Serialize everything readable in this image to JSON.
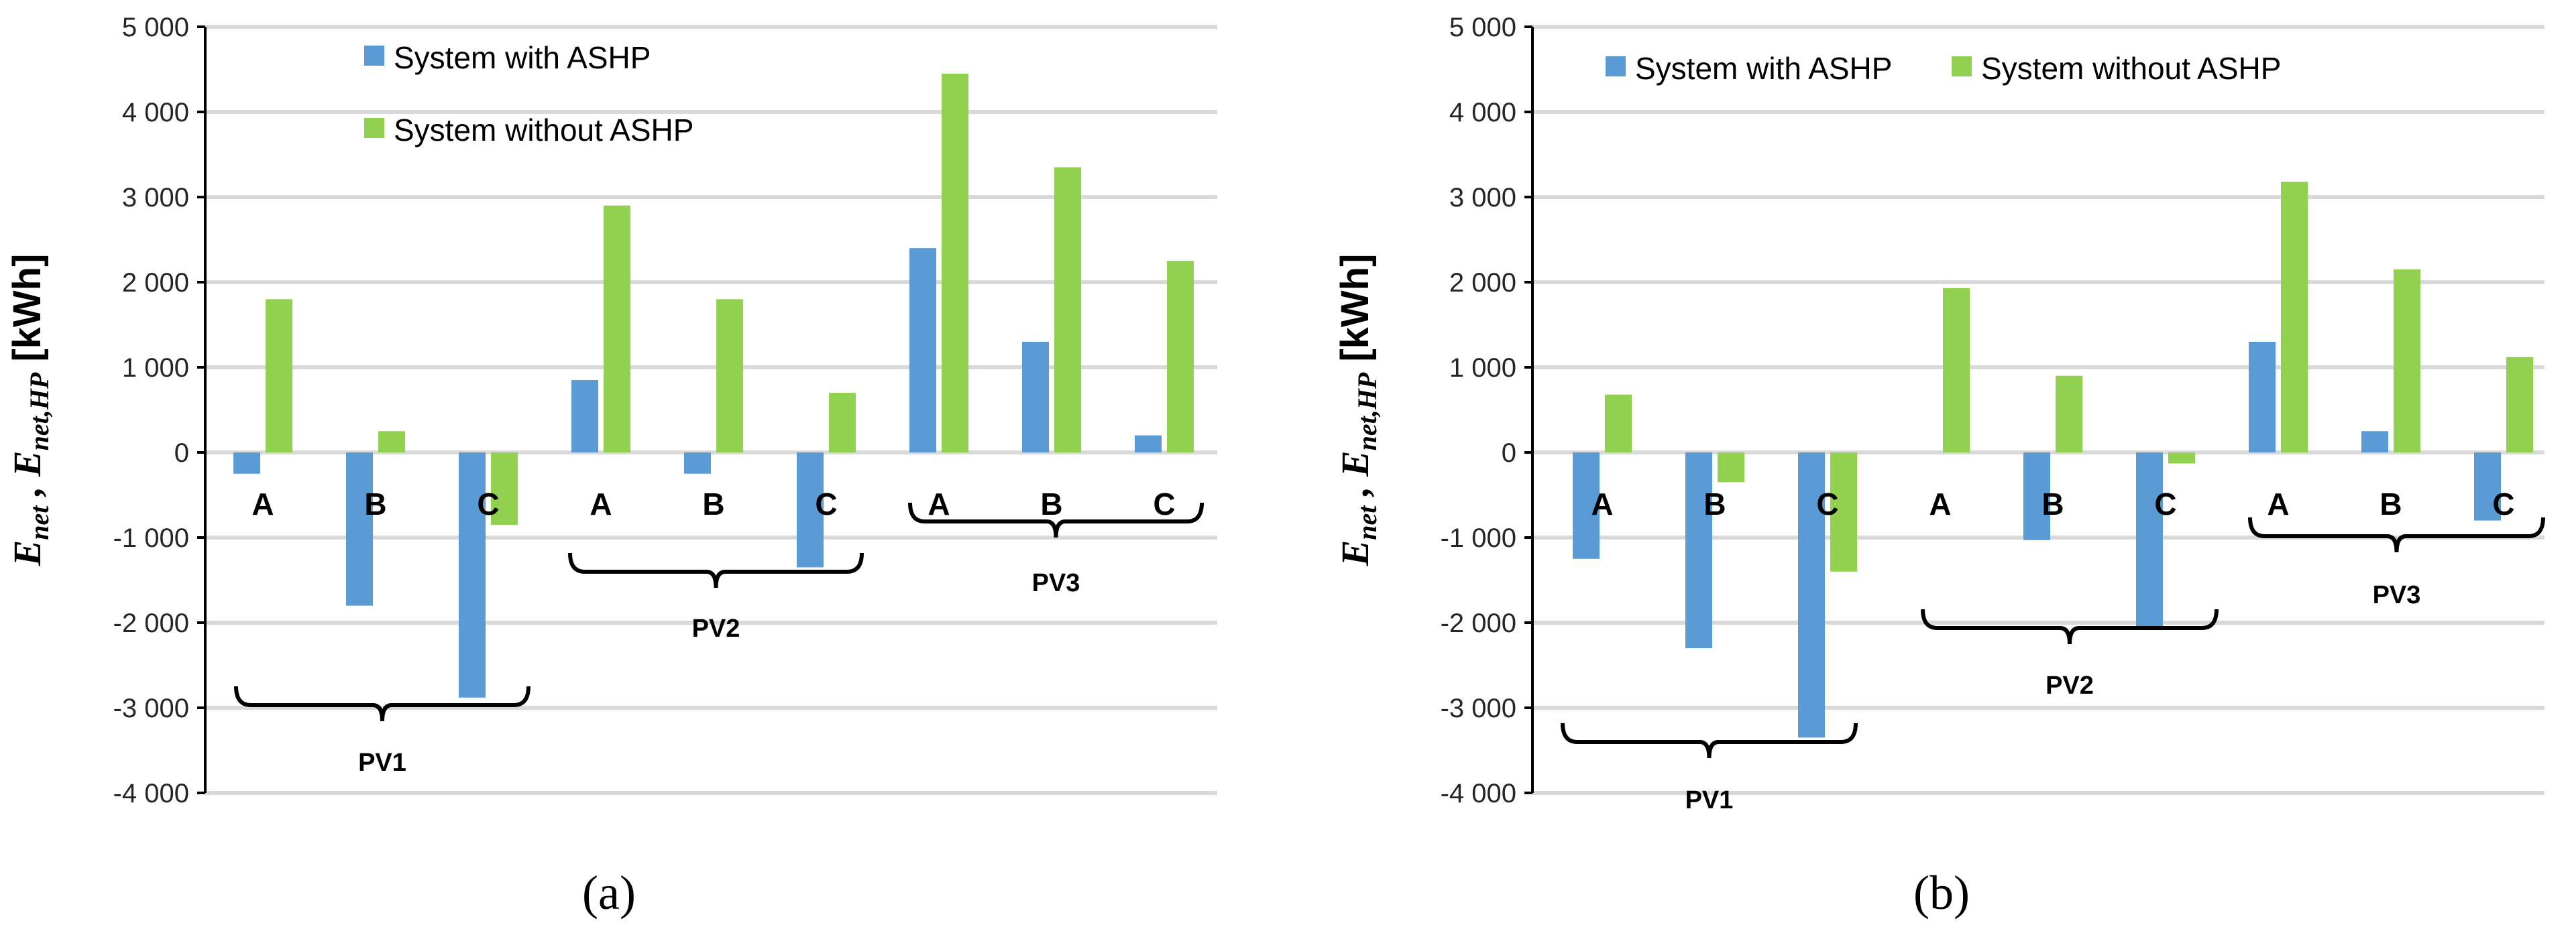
{
  "chart_data": [
    {
      "type": "bar",
      "panel_label": "(a)",
      "ylabel": "Enet , Enet,HP [kWh]",
      "ylim": [
        -4000,
        5000
      ],
      "yticks": [
        5000,
        4000,
        3000,
        2000,
        1000,
        0,
        -1000,
        -2000,
        -3000,
        -4000
      ],
      "ytick_labels": [
        "5 000",
        "4 000",
        "3 000",
        "2 000",
        "1 000",
        "0",
        "-1 000",
        "-2 000",
        "-3 000",
        "-4 000"
      ],
      "grid": true,
      "legend_position": "top-left-stacked",
      "categories": [
        "A",
        "B",
        "C",
        "A",
        "B",
        "C",
        "A",
        "B",
        "C"
      ],
      "groups": [
        {
          "label": "PV1",
          "start": 0,
          "end": 2
        },
        {
          "label": "PV2",
          "start": 3,
          "end": 5
        },
        {
          "label": "PV3",
          "start": 6,
          "end": 8
        }
      ],
      "series": [
        {
          "name": "System with ASHP",
          "color": "#5b9bd5",
          "values": [
            -250,
            -1800,
            -2880,
            850,
            -250,
            -1350,
            2400,
            1300,
            200
          ]
        },
        {
          "name": "System without ASHP",
          "color": "#92d050",
          "values": [
            1800,
            250,
            -850,
            2900,
            1800,
            700,
            4450,
            3350,
            2250
          ]
        }
      ]
    },
    {
      "type": "bar",
      "panel_label": "(b)",
      "ylabel": "Enet , Enet,HP [kWh]",
      "ylim": [
        -4000,
        5000
      ],
      "yticks": [
        5000,
        4000,
        3000,
        2000,
        1000,
        0,
        -1000,
        -2000,
        -3000,
        -4000
      ],
      "ytick_labels": [
        "5 000",
        "4 000",
        "3 000",
        "2 000",
        "1 000",
        "0",
        "-1 000",
        "-2 000",
        "-3 000",
        "-4 000"
      ],
      "grid": true,
      "legend_position": "top-inline",
      "categories": [
        "A",
        "B",
        "C",
        "A",
        "B",
        "C",
        "A",
        "B",
        "C"
      ],
      "groups": [
        {
          "label": "PV1",
          "start": 0,
          "end": 2
        },
        {
          "label": "PV2",
          "start": 3,
          "end": 5
        },
        {
          "label": "PV3",
          "start": 6,
          "end": 8
        }
      ],
      "series": [
        {
          "name": "System with ASHP",
          "color": "#5b9bd5",
          "values": [
            -1250,
            -2300,
            -3350,
            0,
            -1030,
            -2070,
            1300,
            250,
            -800
          ]
        },
        {
          "name": "System without ASHP",
          "color": "#92d050",
          "values": [
            680,
            -350,
            -1400,
            1930,
            900,
            -130,
            3180,
            2150,
            1120
          ]
        }
      ]
    }
  ]
}
